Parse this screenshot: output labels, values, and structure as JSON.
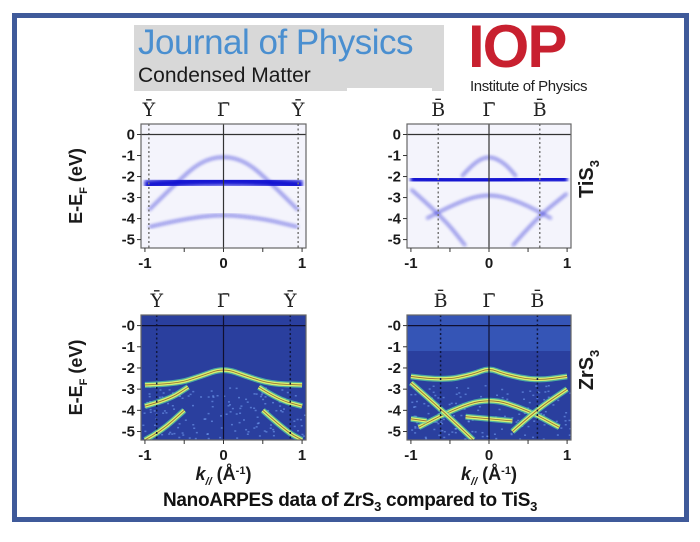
{
  "header": {
    "journal_title": "Journal of Physics",
    "journal_subtitle": "Condensed Matter",
    "publisher_logo": "IOP",
    "publisher_name": "Institute of Physics"
  },
  "caption": {
    "prefix": "NanoARPES data  of ZrS",
    "sub1": "3",
    "middle": " compared to TiS",
    "sub2": "3"
  },
  "colors": {
    "frame_border": "#3f5a9a",
    "journal_blue": "#4a8fd0",
    "journal_box": "#d8d8d8",
    "iop_red": "#c8202f",
    "arpes_raw": "#1010d0",
    "arpes_deriv_bg": "#2a3f9e",
    "arpes_deriv_band": "#d8f070"
  },
  "chart_data": [
    {
      "type": "heatmap",
      "panel": "top-left",
      "material": "TiS3",
      "representation": "raw intensity",
      "high_symmetry_points": [
        "Ȳ",
        "Γ̄",
        "Ȳ"
      ],
      "high_symmetry_k": [
        -0.95,
        0,
        0.95
      ],
      "xlabel": "",
      "ylabel": "E-E_F (eV)",
      "xticks": [
        "-1",
        "0",
        "1"
      ],
      "yticks": [
        "0",
        "-1",
        "-2",
        "-3",
        "-4",
        "-5"
      ],
      "xlim": [
        -1.05,
        1.05
      ],
      "ylim": [
        -5.4,
        0.5
      ],
      "bands": [
        {
          "name": "upper dome",
          "k": [
            -0.95,
            -0.6,
            -0.3,
            0,
            0.3,
            0.6,
            0.95
          ],
          "E": [
            -3.6,
            -2.3,
            -1.3,
            -1.0,
            -1.3,
            -2.3,
            -3.6
          ]
        },
        {
          "name": "flat band",
          "k": [
            -1,
            -0.5,
            0,
            0.5,
            1
          ],
          "E": [
            -2.4,
            -2.25,
            -2.2,
            -2.25,
            -2.4
          ]
        },
        {
          "name": "lower dome",
          "k": [
            -0.95,
            -0.5,
            0,
            0.5,
            0.95
          ],
          "E": [
            -4.4,
            -4.0,
            -3.8,
            -4.0,
            -4.4
          ]
        }
      ]
    },
    {
      "type": "heatmap",
      "panel": "top-right",
      "material": "TiS3",
      "representation": "raw intensity",
      "high_symmetry_points": [
        "B̄",
        "Γ̄",
        "B̄"
      ],
      "high_symmetry_k": [
        -0.65,
        0,
        0.65
      ],
      "xlabel": "",
      "ylabel": "",
      "xticks": [
        "-1",
        "0",
        "1"
      ],
      "yticks": [
        "0",
        "-1",
        "-2",
        "-3",
        "-4",
        "-5"
      ],
      "xlim": [
        -1.05,
        1.05
      ],
      "ylim": [
        -5.4,
        0.5
      ],
      "side_label": "TiS",
      "side_label_sub": "3",
      "bands": [
        {
          "name": "upper dome",
          "k": [
            -0.35,
            -0.2,
            0,
            0.2,
            0.35
          ],
          "E": [
            -2.0,
            -1.35,
            -1.0,
            -1.35,
            -2.0
          ]
        },
        {
          "name": "flat band",
          "k": [
            -1,
            -0.5,
            0,
            0.5,
            1
          ],
          "E": [
            -2.1,
            -2.2,
            -2.2,
            -2.1,
            -2.1
          ]
        },
        {
          "name": "dispersive left",
          "k": [
            -1,
            -0.6,
            -0.3
          ],
          "E": [
            -2.6,
            -3.9,
            -5.3
          ]
        },
        {
          "name": "dispersive right",
          "k": [
            0.3,
            0.6,
            1
          ],
          "E": [
            -5.3,
            -4.0,
            -2.8
          ]
        },
        {
          "name": "lower arc",
          "k": [
            -0.8,
            -0.4,
            0,
            0.4,
            0.8
          ],
          "E": [
            -4.0,
            -3.2,
            -2.8,
            -3.2,
            -4.0
          ]
        }
      ]
    },
    {
      "type": "heatmap",
      "panel": "bottom-left",
      "material": "ZrS3",
      "representation": "second derivative",
      "high_symmetry_points": [
        "Ȳ",
        "Γ̄",
        "Ȳ"
      ],
      "high_symmetry_k": [
        -0.85,
        0,
        0.85
      ],
      "xlabel": "k// (Å⁻¹)",
      "xlabel_main": "k",
      "xlabel_sub": "//",
      "xlabel_unit": "(Å",
      "xlabel_sup": "-1",
      "xlabel_close": ")",
      "ylabel": "E-E_F (eV)",
      "xticks": [
        "-1",
        "0",
        "1"
      ],
      "yticks": [
        "-0",
        "-1",
        "-2",
        "-3",
        "-4",
        "-5"
      ],
      "xlim": [
        -1.05,
        1.05
      ],
      "ylim": [
        -5.4,
        0.5
      ],
      "bands": [
        {
          "name": "top band",
          "k": [
            -1,
            -0.6,
            -0.3,
            0,
            0.3,
            0.6,
            1
          ],
          "E": [
            -2.8,
            -2.75,
            -2.4,
            -2.0,
            -2.4,
            -2.75,
            -2.8
          ]
        },
        {
          "name": "second band",
          "k": [
            -1,
            -0.7,
            -0.45
          ],
          "E": [
            -3.8,
            -3.5,
            -2.9
          ]
        },
        {
          "name": "second band right",
          "k": [
            0.45,
            0.7,
            1
          ],
          "E": [
            -2.9,
            -3.5,
            -3.8
          ]
        },
        {
          "name": "deep left",
          "k": [
            -1,
            -0.8,
            -0.5
          ],
          "E": [
            -5.4,
            -5.0,
            -4.0
          ]
        },
        {
          "name": "deep right",
          "k": [
            0.5,
            0.8,
            1
          ],
          "E": [
            -4.0,
            -5.0,
            -5.4
          ]
        }
      ]
    },
    {
      "type": "heatmap",
      "panel": "bottom-right",
      "material": "ZrS3",
      "representation": "second derivative",
      "high_symmetry_points": [
        "B̄",
        "Γ̄",
        "B̄"
      ],
      "high_symmetry_k": [
        -0.62,
        0,
        0.62
      ],
      "xlabel": "k// (Å⁻¹)",
      "xlabel_main": "k",
      "xlabel_sub": "//",
      "xlabel_unit": "(Å",
      "xlabel_sup": "-1",
      "xlabel_close": ")",
      "ylabel": "",
      "xticks": [
        "-1",
        "0",
        "1"
      ],
      "yticks": [
        "-0",
        "-1",
        "-2",
        "-3",
        "-4",
        "-5"
      ],
      "xlim": [
        -1.05,
        1.05
      ],
      "ylim": [
        -5.4,
        0.5
      ],
      "side_label": "ZrS",
      "side_label_sub": "3",
      "bands": [
        {
          "name": "upper band",
          "k": [
            -1,
            -0.6,
            -0.2,
            0,
            0.2,
            0.6,
            1
          ],
          "E": [
            -2.4,
            -2.6,
            -2.3,
            -2.0,
            -2.3,
            -2.6,
            -2.4
          ]
        },
        {
          "name": "middle dome",
          "k": [
            -0.9,
            -0.5,
            0,
            0.5,
            0.9
          ],
          "E": [
            -4.8,
            -4.0,
            -3.4,
            -4.0,
            -4.8
          ]
        },
        {
          "name": "left disp",
          "k": [
            -1,
            -0.6,
            -0.2
          ],
          "E": [
            -2.7,
            -4.0,
            -5.4
          ]
        },
        {
          "name": "right disp",
          "k": [
            0.3,
            0.6,
            1
          ],
          "E": [
            -5.0,
            -4.0,
            -3.0
          ]
        },
        {
          "name": "left low flat",
          "k": [
            -1,
            -0.8
          ],
          "E": [
            -4.4,
            -4.5
          ]
        },
        {
          "name": "mid low flat",
          "k": [
            -0.3,
            0,
            0.3
          ],
          "E": [
            -4.3,
            -4.4,
            -4.5
          ]
        }
      ]
    }
  ]
}
